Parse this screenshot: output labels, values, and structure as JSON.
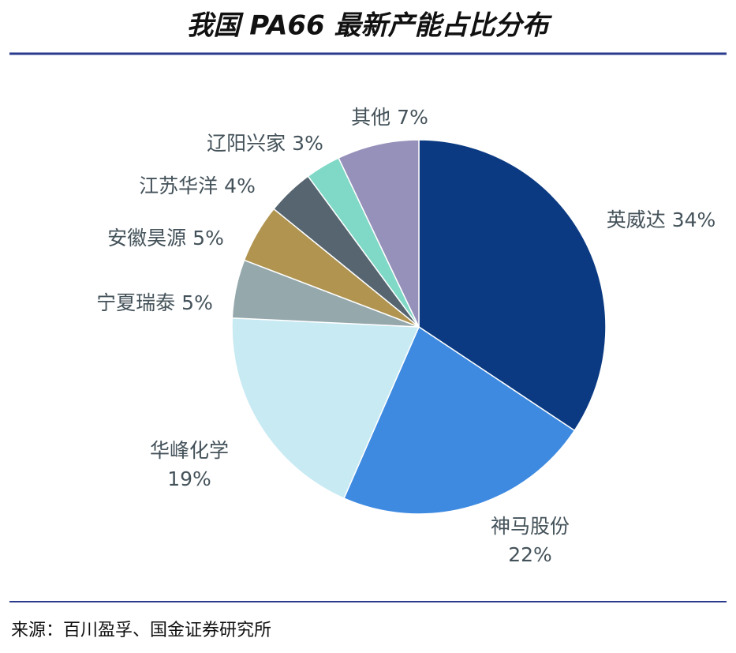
{
  "chart_data": {
    "type": "pie",
    "title": "我国 PA66 最新产能占比分布",
    "categories": [
      "英威达",
      "神马股份",
      "华峰化学",
      "宁夏瑞泰",
      "安徽昊源",
      "江苏华洋",
      "辽阳兴家",
      "其他"
    ],
    "values": [
      34,
      22,
      19,
      5,
      5,
      4,
      3,
      7
    ],
    "value_labels": [
      "34%",
      "22%",
      "19%",
      "5%",
      "5%",
      "4%",
      "3%",
      "7%"
    ],
    "colors": [
      "#0b3a82",
      "#3d8ae0",
      "#c8eaf3",
      "#95a8ac",
      "#b09450",
      "#566570",
      "#7fd9c6",
      "#9691bb"
    ],
    "source": "来源：百川盈孚、国金证券研究所"
  }
}
